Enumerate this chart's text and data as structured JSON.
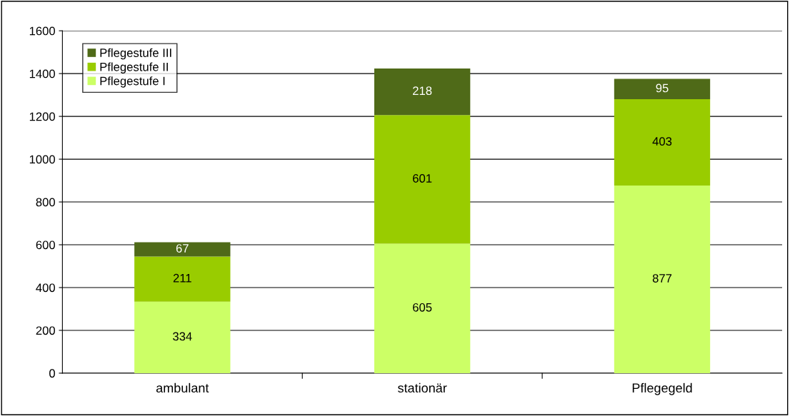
{
  "chart_data": {
    "type": "bar",
    "stacked": true,
    "categories": [
      "ambulant",
      "stationär",
      "Pflegegeld"
    ],
    "series": [
      {
        "name": "Pflegestufe I",
        "color": "#ccff66",
        "values": [
          334,
          605,
          877
        ]
      },
      {
        "name": "Pflegestufe II",
        "color": "#99cc00",
        "values": [
          211,
          601,
          403
        ]
      },
      {
        "name": "Pflegestufe III",
        "color": "#4f6a18",
        "values": [
          67,
          218,
          95
        ]
      }
    ],
    "ylim": [
      0,
      1600
    ],
    "yticks": [
      0,
      200,
      400,
      600,
      800,
      1000,
      1200,
      1400,
      1600
    ],
    "grid": "y",
    "legend": "top left",
    "data_labels": true
  }
}
